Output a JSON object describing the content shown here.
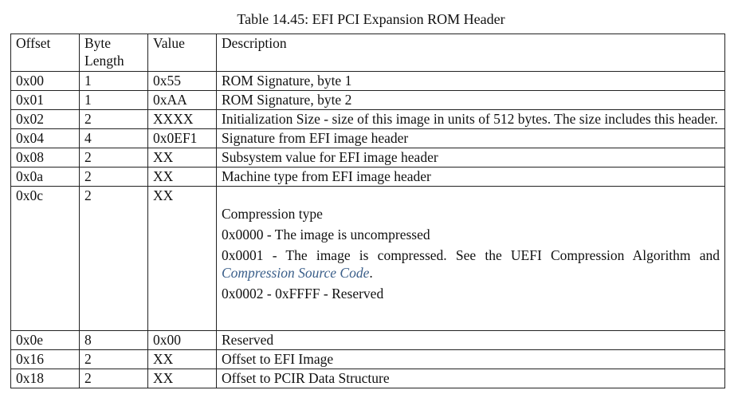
{
  "caption": "Table 14.45: EFI PCI Expansion ROM Header",
  "headers": {
    "offset": "Offset",
    "byte_length_1": "Byte",
    "byte_length_2": "Length",
    "value": "Value",
    "description": "Description"
  },
  "rows": [
    {
      "offset": "0x00",
      "length": "1",
      "value": "0x55",
      "description": "ROM Signature, byte 1"
    },
    {
      "offset": "0x01",
      "length": "1",
      "value": "0xAA",
      "description": "ROM Signature, byte 2"
    },
    {
      "offset": "0x02",
      "length": "2",
      "value": "XXXX",
      "description": "Initialization Size - size of this image in units of 512 bytes. The size includes this header."
    },
    {
      "offset": "0x04",
      "length": "4",
      "value": "0x0EF1",
      "description": "Signature from EFI image header"
    },
    {
      "offset": "0x08",
      "length": "2",
      "value": "XX",
      "description": "Subsystem value for EFI image header"
    },
    {
      "offset": "0x0a",
      "length": "2",
      "value": "XX",
      "description": "Machine type from EFI image header"
    }
  ],
  "compression_row": {
    "offset": "0x0c",
    "length": "2",
    "value": "XX",
    "title": "Compression type",
    "opt0": "0x0000 - The image is uncompressed",
    "opt1_prefix": "0x0001 - The image is compressed. See the UEFI Compression Algorithm and ",
    "opt1_link": "Compression Source Code",
    "opt1_suffix": ".",
    "opt2": "0x0002 - 0xFFFF - Reserved"
  },
  "rows_after": [
    {
      "offset": "0x0e",
      "length": "8",
      "value": "0x00",
      "description": "Reserved"
    },
    {
      "offset": "0x16",
      "length": "2",
      "value": "XX",
      "description": "Offset to EFI Image"
    },
    {
      "offset": "0x18",
      "length": "2",
      "value": "XX",
      "description": "Offset to PCIR Data Structure"
    }
  ]
}
